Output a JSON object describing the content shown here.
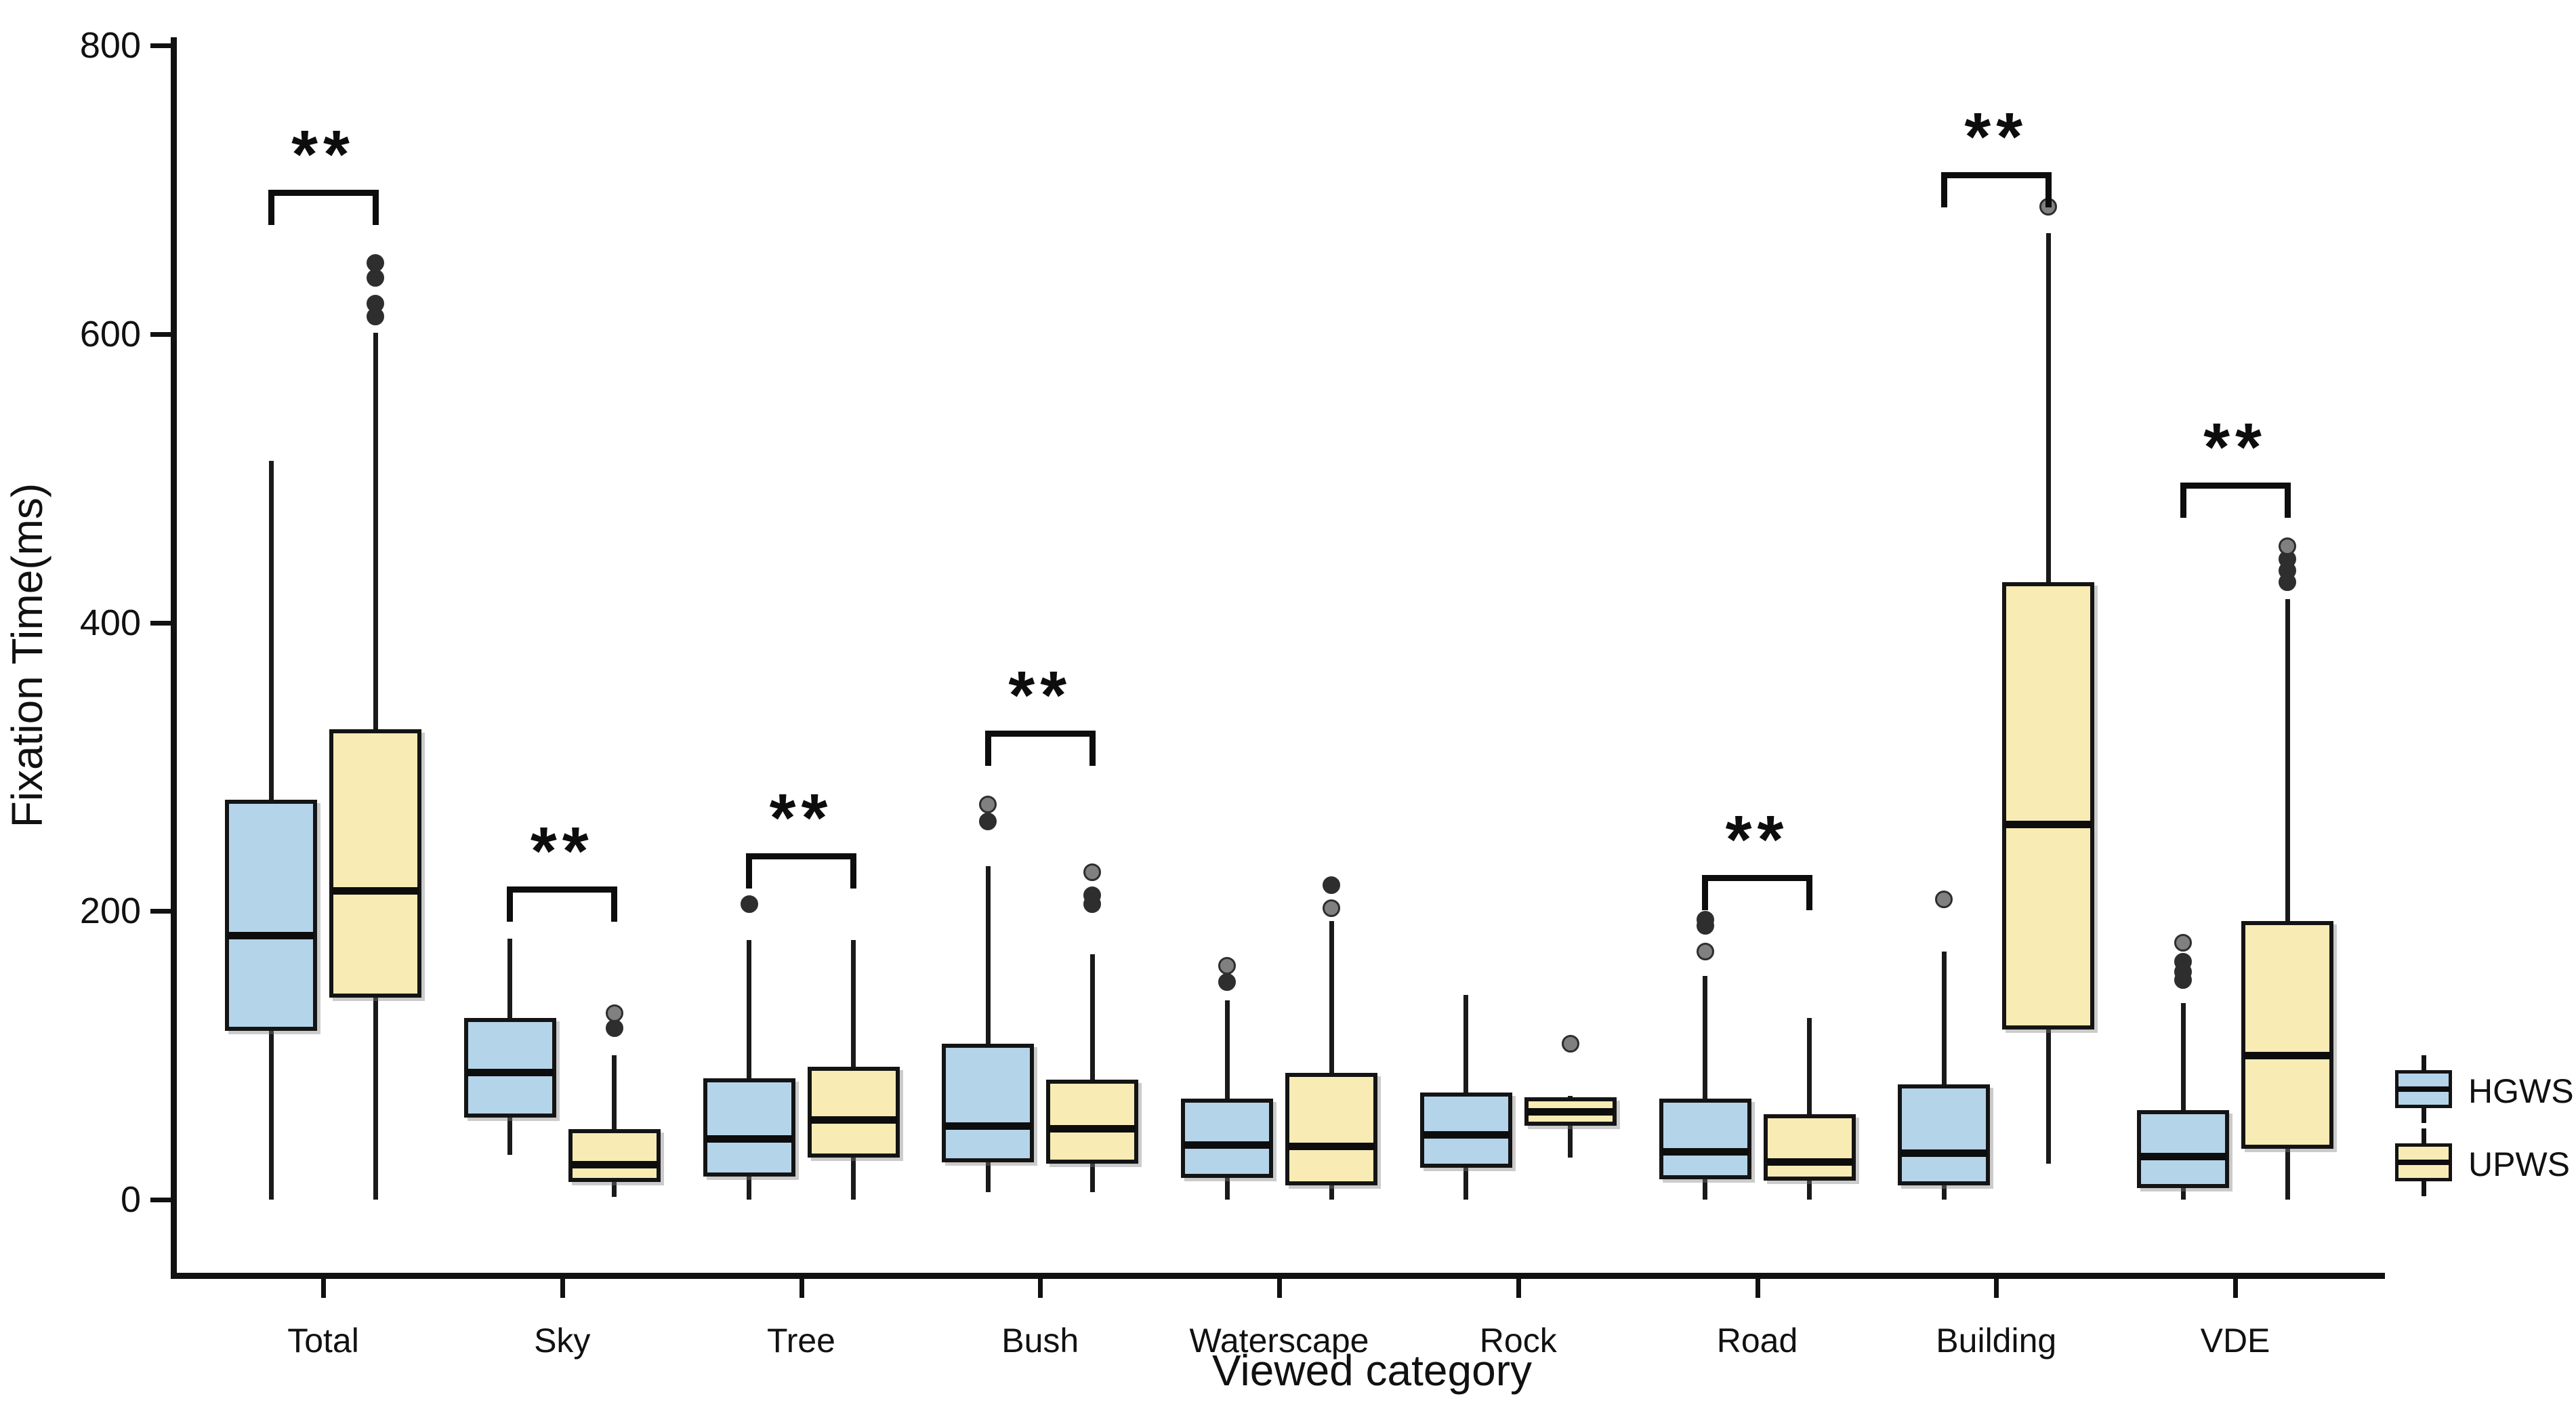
{
  "chart_data": {
    "type": "boxplot",
    "title": "",
    "xlabel": "Viewed category",
    "ylabel": "Fixation Time(ms)",
    "ylim": [
      0,
      800
    ],
    "yticks": [
      0,
      200,
      400,
      600,
      800
    ],
    "grid": false,
    "legend_position": "right",
    "categories": [
      "Total",
      "Sky",
      "Tree",
      "Bush",
      "Waterscape",
      "Rock",
      "Road",
      "Building",
      "VDE"
    ],
    "series": [
      {
        "name": "HGWS",
        "color": "#B4D4EA",
        "boxes": [
          {
            "min": 0,
            "q1": 117,
            "median": 183,
            "q3": 277,
            "max": 512,
            "outliers": []
          },
          {
            "min": 31,
            "q1": 57,
            "median": 88,
            "q3": 126,
            "max": 181,
            "outliers": []
          },
          {
            "min": 0,
            "q1": 16,
            "median": 42,
            "q3": 84,
            "max": 180,
            "outliers": [
              {
                "v": 205,
                "shade": "dark"
              }
            ]
          },
          {
            "min": 5,
            "q1": 26,
            "median": 51,
            "q3": 108,
            "max": 231,
            "outliers": [
              {
                "v": 262,
                "shade": "dark"
              },
              {
                "v": 274,
                "shade": "light"
              }
            ]
          },
          {
            "min": 0,
            "q1": 15,
            "median": 38,
            "q3": 70,
            "max": 138,
            "outliers": [
              {
                "v": 151,
                "shade": "dark"
              },
              {
                "v": 162,
                "shade": "light"
              }
            ]
          },
          {
            "min": 0,
            "q1": 22,
            "median": 45,
            "q3": 74,
            "max": 142,
            "outliers": []
          },
          {
            "min": 0,
            "q1": 14,
            "median": 33,
            "q3": 70,
            "max": 155,
            "outliers": [
              {
                "v": 172,
                "shade": "light"
              },
              {
                "v": 190,
                "shade": "dark"
              },
              {
                "v": 194,
                "shade": "dark"
              }
            ]
          },
          {
            "min": 0,
            "q1": 10,
            "median": 32,
            "q3": 80,
            "max": 172,
            "outliers": [
              {
                "v": 208,
                "shade": "light"
              }
            ]
          },
          {
            "min": 0,
            "q1": 8,
            "median": 30,
            "q3": 62,
            "max": 136,
            "outliers": [
              {
                "v": 152,
                "shade": "dark"
              },
              {
                "v": 158,
                "shade": "dark"
              },
              {
                "v": 165,
                "shade": "dark"
              },
              {
                "v": 178,
                "shade": "light"
              }
            ]
          }
        ]
      },
      {
        "name": "UPWS",
        "color": "#F8EBB4",
        "boxes": [
          {
            "min": 0,
            "q1": 140,
            "median": 214,
            "q3": 326,
            "max": 601,
            "outliers": [
              {
                "v": 612,
                "shade": "dark"
              },
              {
                "v": 621,
                "shade": "dark"
              },
              {
                "v": 639,
                "shade": "dark"
              },
              {
                "v": 649,
                "shade": "dark"
              }
            ]
          },
          {
            "min": 2,
            "q1": 12,
            "median": 24,
            "q3": 49,
            "max": 100,
            "outliers": [
              {
                "v": 119,
                "shade": "dark"
              },
              {
                "v": 129,
                "shade": "light"
              }
            ]
          },
          {
            "min": 0,
            "q1": 29,
            "median": 55,
            "q3": 92,
            "max": 180,
            "outliers": []
          },
          {
            "min": 5,
            "q1": 25,
            "median": 49,
            "q3": 83,
            "max": 170,
            "outliers": [
              {
                "v": 205,
                "shade": "dark"
              },
              {
                "v": 211,
                "shade": "dark"
              },
              {
                "v": 227,
                "shade": "light"
              }
            ]
          },
          {
            "min": 0,
            "q1": 10,
            "median": 37,
            "q3": 88,
            "max": 193,
            "outliers": [
              {
                "v": 202,
                "shade": "light"
              },
              {
                "v": 218,
                "shade": "dark"
              }
            ]
          },
          {
            "min": 29,
            "q1": 51,
            "median": 61,
            "q3": 71,
            "max": 72,
            "outliers": [
              {
                "v": 108,
                "shade": "light"
              }
            ]
          },
          {
            "min": 0,
            "q1": 13,
            "median": 26,
            "q3": 59,
            "max": 126,
            "outliers": []
          },
          {
            "min": 25,
            "q1": 118,
            "median": 260,
            "q3": 428,
            "max": 670,
            "outliers": [
              {
                "v": 688,
                "shade": "light"
              }
            ]
          },
          {
            "min": 0,
            "q1": 35,
            "median": 100,
            "q3": 193,
            "max": 416,
            "outliers": [
              {
                "v": 428,
                "shade": "dark"
              },
              {
                "v": 436,
                "shade": "dark"
              },
              {
                "v": 444,
                "shade": "dark"
              },
              {
                "v": 453,
                "shade": "light"
              }
            ]
          }
        ]
      }
    ],
    "significance": [
      {
        "category": "Total",
        "label": "**",
        "y": 700
      },
      {
        "category": "Sky",
        "label": "**",
        "y": 217
      },
      {
        "category": "Tree",
        "label": "**",
        "y": 240
      },
      {
        "category": "Bush",
        "label": "**",
        "y": 325
      },
      {
        "category": "Road",
        "label": "**",
        "y": 225
      },
      {
        "category": "Building",
        "label": "**",
        "y": 712
      },
      {
        "category": "VDE",
        "label": "**",
        "y": 497
      }
    ],
    "outlier_colors": {
      "dark": "#2e2e2e",
      "light": "#808080"
    },
    "line_color": "#141414"
  }
}
